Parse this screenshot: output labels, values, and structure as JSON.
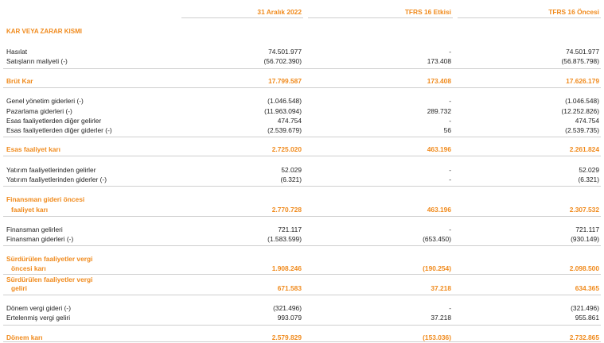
{
  "columns": {
    "c1": "31 Aralık 2022",
    "c2": "TFRS 16 Etkisi",
    "c3": "TFRS 16 Öncesi"
  },
  "section_title": "KAR VEYA ZARAR KISMI",
  "rows": {
    "hasilat": {
      "label": "Hasılat",
      "c1": "74.501.977",
      "c2": "-",
      "c3": "74.501.977"
    },
    "satis_maliyeti": {
      "label": "Satışların maliyeti (-)",
      "c1": "(56.702.390)",
      "c2": "173.408",
      "c3": "(56.875.798)"
    },
    "brut_kar": {
      "label": "Brüt Kar",
      "c1": "17.799.587",
      "c2": "173.408",
      "c3": "17.626.179"
    },
    "genel_yonetim": {
      "label": "Genel yönetim giderleri (-)",
      "c1": "(1.046.548)",
      "c2": "-",
      "c3": "(1.046.548)"
    },
    "pazarlama": {
      "label": "Pazarlama giderleri (-)",
      "c1": "(11.963.094)",
      "c2": "289.732",
      "c3": "(12.252.826)"
    },
    "diger_gelirler": {
      "label": "Esas faaliyetlerden diğer gelirler",
      "c1": "474.754",
      "c2": "-",
      "c3": "474.754"
    },
    "diger_giderler": {
      "label": "Esas faaliyetlerden diğer giderler (-)",
      "c1": "(2.539.679)",
      "c2": "56",
      "c3": "(2.539.735)"
    },
    "esas_faaliyet_kari": {
      "label": "Esas faaliyet karı",
      "c1": "2.725.020",
      "c2": "463.196",
      "c3": "2.261.824"
    },
    "yatirim_gelir": {
      "label": "Yatırım faaliyetlerinden gelirler",
      "c1": "52.029",
      "c2": "-",
      "c3": "52.029"
    },
    "yatirim_gider": {
      "label": "Yatırım faaliyetlerinden giderler (-)",
      "c1": "(6.321)",
      "c2": "-",
      "c3": "(6.321)"
    },
    "finansman_oncesi": {
      "label1": "Finansman gideri öncesi",
      "label2": "faaliyet karı",
      "c1": "2.770.728",
      "c2": "463.196",
      "c3": "2.307.532"
    },
    "finansman_gelir": {
      "label": "Finansman gelirleri",
      "c1": "721.117",
      "c2": "-",
      "c3": "721.117"
    },
    "finansman_gider": {
      "label": "Finansman giderleri (-)",
      "c1": "(1.583.599)",
      "c2": "(653.450)",
      "c3": "(930.149)"
    },
    "vergi_oncesi": {
      "label1": "Sürdürülen faaliyetler vergi",
      "label2": "öncesi karı",
      "c1": "1.908.246",
      "c2": "(190.254)",
      "c3": "2.098.500"
    },
    "vergi_geliri": {
      "label1": "Sürdürülen faaliyetler vergi",
      "label2": "geliri",
      "c1": "671.583",
      "c2": "37.218",
      "c3": "634.365"
    },
    "donem_vergi": {
      "label": "Dönem vergi gideri (-)",
      "c1": "(321.496)",
      "c2": "-",
      "c3": "(321.496)"
    },
    "ertelenmis": {
      "label": "Ertelenmiş vergi geliri",
      "c1": "993.079",
      "c2": "37.218",
      "c3": "955.861"
    },
    "donem_kari": {
      "label": "Dönem karı",
      "c1": "2.579.829",
      "c2": "(153.036)",
      "c3": "2.732.865"
    }
  },
  "colors": {
    "accent": "#f08a1c",
    "rule": "#cfcfcf"
  }
}
